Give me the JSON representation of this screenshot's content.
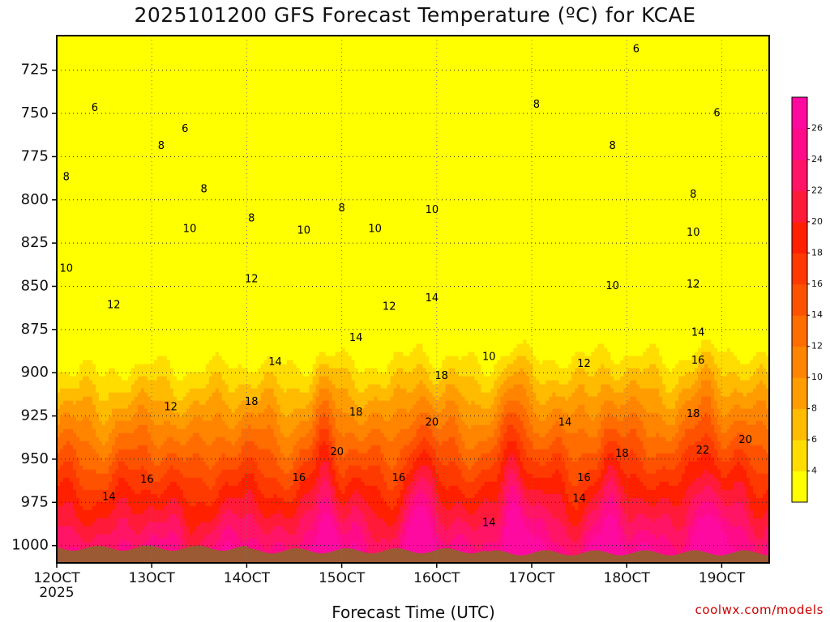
{
  "title": "2025101200 GFS Forecast Temperature (ºC) for KCAE",
  "xlabel": "Forecast Time (UTC)",
  "credit": "coolwx.com/models",
  "year_label": "2025",
  "colors": {
    "ground": "#9b5a33",
    "contour_line": "#000000",
    "scale": [
      "#ffff00",
      "#ffdd00",
      "#ffbb00",
      "#ff9d00",
      "#ff8500",
      "#ff6c00",
      "#ff5200",
      "#ff3a00",
      "#ff2000",
      "#ff1a3a",
      "#ff1466",
      "#ff0a88",
      "#ff0aa0"
    ]
  },
  "chart_data": {
    "type": "heatmap",
    "title": "2025101200 GFS Forecast Temperature (ºC) for KCAE",
    "xlabel": "Forecast Time (UTC)",
    "ylabel": "",
    "x_ticks": [
      "12OCT",
      "13OCT",
      "14OCT",
      "15OCT",
      "16OCT",
      "17OCT",
      "18OCT",
      "19OCT"
    ],
    "x_tick_days": [
      12,
      13,
      14,
      15,
      16,
      17,
      18,
      19
    ],
    "xlim": [
      12,
      19.5
    ],
    "y_ticks": [
      725,
      750,
      775,
      800,
      825,
      850,
      875,
      900,
      925,
      950,
      975,
      1000
    ],
    "ylim_hPa": [
      1010,
      705
    ],
    "y_scale": "pressure (decreasing upward)",
    "colorbar_ticks": [
      4,
      6,
      8,
      10,
      12,
      14,
      16,
      18,
      20,
      22,
      24,
      26
    ],
    "colorbar_levels": [
      2,
      4,
      6,
      8,
      10,
      12,
      14,
      16,
      18,
      20,
      22,
      24,
      26,
      28
    ],
    "grid": true,
    "contour_labels": [
      {
        "t": 12.1,
        "p": 840,
        "v": "10"
      },
      {
        "t": 12.1,
        "p": 787,
        "v": "8"
      },
      {
        "t": 12.4,
        "p": 747,
        "v": "6"
      },
      {
        "t": 12.6,
        "p": 861,
        "v": "12"
      },
      {
        "t": 12.55,
        "p": 972,
        "v": "14"
      },
      {
        "t": 12.95,
        "p": 962,
        "v": "16"
      },
      {
        "t": 13.1,
        "p": 769,
        "v": "8"
      },
      {
        "t": 13.35,
        "p": 759,
        "v": "6"
      },
      {
        "t": 13.55,
        "p": 794,
        "v": "8"
      },
      {
        "t": 13.4,
        "p": 817,
        "v": "10"
      },
      {
        "t": 13.2,
        "p": 920,
        "v": "12"
      },
      {
        "t": 14.05,
        "p": 846,
        "v": "12"
      },
      {
        "t": 14.05,
        "p": 811,
        "v": "8"
      },
      {
        "t": 14.3,
        "p": 894,
        "v": "14"
      },
      {
        "t": 14.05,
        "p": 917,
        "v": "18"
      },
      {
        "t": 14.6,
        "p": 818,
        "v": "10"
      },
      {
        "t": 15.0,
        "p": 805,
        "v": "8"
      },
      {
        "t": 15.35,
        "p": 817,
        "v": "10"
      },
      {
        "t": 15.15,
        "p": 880,
        "v": "14"
      },
      {
        "t": 15.15,
        "p": 923,
        "v": "18"
      },
      {
        "t": 14.55,
        "p": 961,
        "v": "16"
      },
      {
        "t": 14.95,
        "p": 946,
        "v": "20"
      },
      {
        "t": 15.5,
        "p": 862,
        "v": "12"
      },
      {
        "t": 15.6,
        "p": 961,
        "v": "16"
      },
      {
        "t": 15.95,
        "p": 806,
        "v": "10"
      },
      {
        "t": 15.95,
        "p": 857,
        "v": "14"
      },
      {
        "t": 16.05,
        "p": 902,
        "v": "18"
      },
      {
        "t": 15.95,
        "p": 929,
        "v": "20"
      },
      {
        "t": 16.55,
        "p": 891,
        "v": "10"
      },
      {
        "t": 16.55,
        "p": 987,
        "v": "14"
      },
      {
        "t": 17.05,
        "p": 745,
        "v": "8"
      },
      {
        "t": 17.35,
        "p": 929,
        "v": "14"
      },
      {
        "t": 17.55,
        "p": 895,
        "v": "12"
      },
      {
        "t": 17.55,
        "p": 961,
        "v": "16"
      },
      {
        "t": 17.5,
        "p": 973,
        "v": "14"
      },
      {
        "t": 17.85,
        "p": 769,
        "v": "8"
      },
      {
        "t": 17.85,
        "p": 850,
        "v": "10"
      },
      {
        "t": 17.95,
        "p": 947,
        "v": "18"
      },
      {
        "t": 18.7,
        "p": 797,
        "v": "8"
      },
      {
        "t": 18.7,
        "p": 819,
        "v": "10"
      },
      {
        "t": 18.7,
        "p": 849,
        "v": "12"
      },
      {
        "t": 18.75,
        "p": 877,
        "v": "14"
      },
      {
        "t": 18.75,
        "p": 893,
        "v": "16"
      },
      {
        "t": 18.7,
        "p": 924,
        "v": "18"
      },
      {
        "t": 18.8,
        "p": 945,
        "v": "22"
      },
      {
        "t": 19.25,
        "p": 939,
        "v": "20"
      },
      {
        "t": 18.95,
        "p": 750,
        "v": "6"
      },
      {
        "t": 18.1,
        "p": 713,
        "v": "6"
      }
    ]
  }
}
